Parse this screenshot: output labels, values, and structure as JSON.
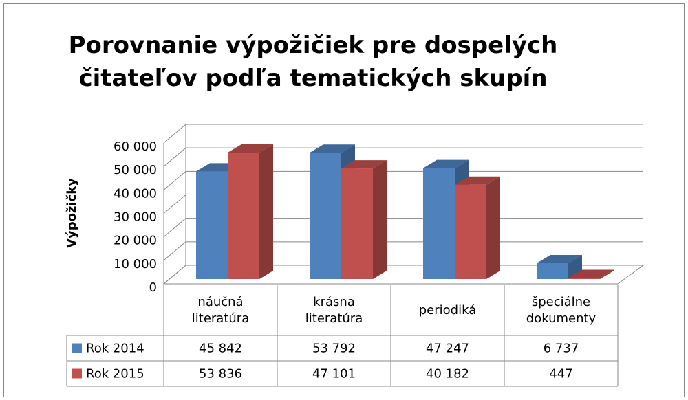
{
  "chart_data": {
    "type": "bar3d",
    "title": "Porovnanie výpožičiek pre dospelých čitateľov podľa tematických skupín",
    "y_axis_label": "Výpožičky",
    "categories": [
      "náučná literatúra",
      "krásna literatúra",
      "periodiká",
      "špeciálne dokumenty"
    ],
    "series": [
      {
        "name": "Rok 2014",
        "color": "#4f81bd",
        "values": [
          45842,
          53792,
          47247,
          6737
        ],
        "value_labels": [
          "45 842",
          "53 792",
          "47 247",
          "6 737"
        ]
      },
      {
        "name": "Rok 2015",
        "color": "#c0504d",
        "values": [
          53836,
          47101,
          40182,
          447
        ],
        "value_labels": [
          "53 836",
          "47 101",
          "40 182",
          "447"
        ]
      }
    ],
    "ylim": [
      0,
      60000
    ],
    "yticks": [
      0,
      {
        "value": 10000,
        "label": "10 000"
      },
      {
        "value": 20000,
        "label": "20 000"
      },
      {
        "value": 30000,
        "label": "30 000"
      },
      {
        "value": 40000,
        "label": "40 000"
      },
      {
        "value": 50000,
        "label": "50 000"
      },
      {
        "value": 60000,
        "label": "60 000"
      }
    ],
    "grid": true,
    "legend": "table"
  }
}
